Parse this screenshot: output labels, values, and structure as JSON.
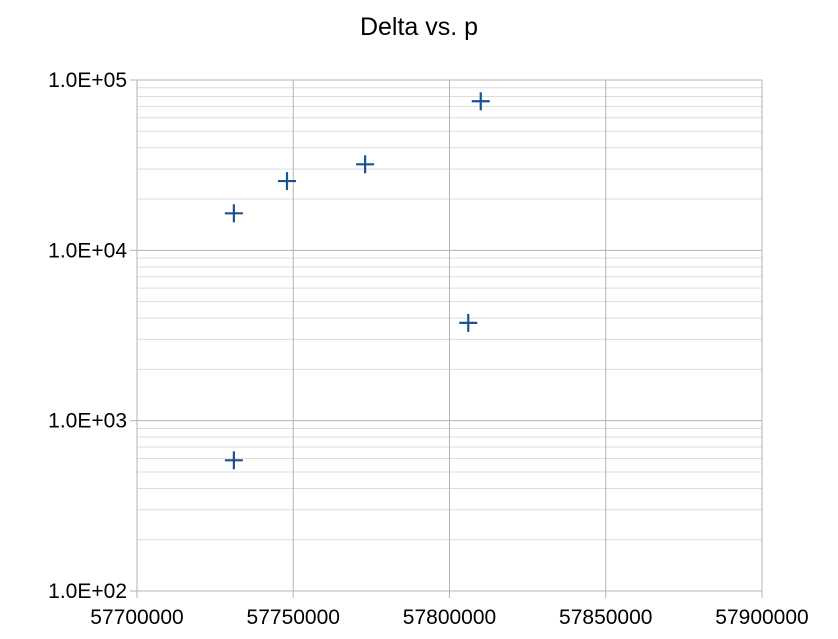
{
  "chart_data": {
    "type": "scatter",
    "title": "Delta vs. p",
    "xlabel": "",
    "ylabel": "",
    "x_scale": "linear",
    "y_scale": "log",
    "xlim": [
      57700000,
      57900000
    ],
    "ylim": [
      100,
      100000
    ],
    "x_ticks": [
      "57700000",
      "57750000",
      "57800000",
      "57850000",
      "57900000"
    ],
    "y_ticks": [
      "1.0E+02",
      "1.0E+03",
      "1.0E+04",
      "1.0E+05"
    ],
    "x_tick_values": [
      57700000,
      57750000,
      57800000,
      57850000,
      57900000
    ],
    "y_tick_values": [
      100,
      1000,
      10000,
      100000
    ],
    "grid": {
      "major": true,
      "minor_y": true
    },
    "legend": "none",
    "marker": "plus",
    "colors": {
      "marker": "#1a5190",
      "grid_major": "#b3b3b3",
      "grid_minor": "#dddddd",
      "axis": "#b3b3b3"
    },
    "series": [
      {
        "x": [
          57731000,
          57748000,
          57773000,
          57806000,
          57810000,
          57731000
        ],
        "y": [
          16500,
          25500,
          32000,
          3750,
          75000,
          585
        ]
      }
    ]
  }
}
